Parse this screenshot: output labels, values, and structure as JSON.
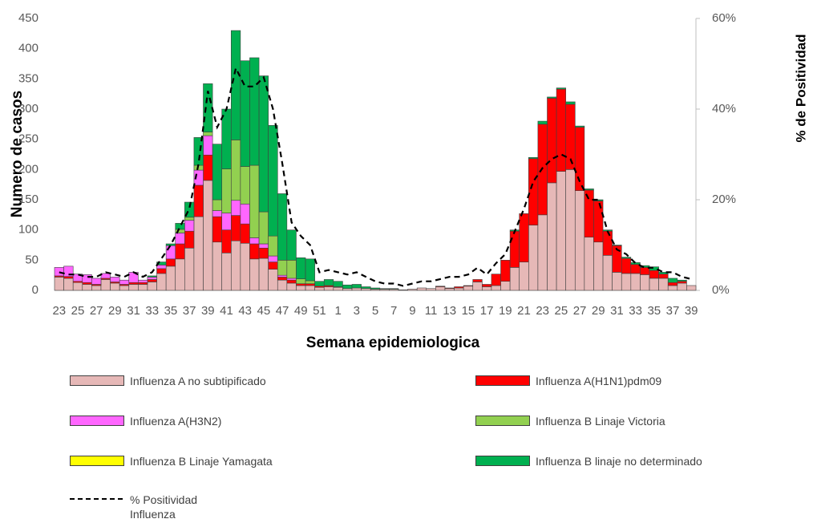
{
  "chart_data": {
    "type": "bar",
    "x_label": "Semana epidemiologica",
    "y_label": "Numero de casos",
    "y2_label": "% de Positividad",
    "categories": [
      "23",
      null,
      "25",
      null,
      "27",
      null,
      "29",
      null,
      "31",
      null,
      "33",
      null,
      "35",
      null,
      "37",
      null,
      "39",
      null,
      "41",
      null,
      "43",
      null,
      "45",
      null,
      "47",
      null,
      "49",
      null,
      "51",
      null,
      "1",
      null,
      "3",
      null,
      "5",
      null,
      "7",
      null,
      "9",
      null,
      "11",
      null,
      "13",
      null,
      "15",
      null,
      "17",
      null,
      "19",
      null,
      "21",
      null,
      "23",
      null,
      "25",
      null,
      "27",
      null,
      "29",
      null,
      "31",
      null,
      "33",
      null,
      "35",
      null,
      "37",
      null,
      "39"
    ],
    "ylim": [
      0,
      450
    ],
    "yticks": [
      0,
      50,
      100,
      150,
      200,
      250,
      300,
      350,
      400,
      450
    ],
    "y2lim": [
      0,
      60
    ],
    "y2ticks": [
      {
        "value": 0,
        "label": "0%"
      },
      {
        "value": 20,
        "label": "20%"
      },
      {
        "value": 40,
        "label": "40%"
      },
      {
        "value": 60,
        "label": "60%"
      }
    ],
    "grid": false,
    "series": [
      {
        "name": "Influenza A no subtipificado",
        "color": "#e6b8b7",
        "values": [
          22,
          20,
          13,
          10,
          8,
          18,
          12,
          8,
          10,
          10,
          14,
          28,
          40,
          52,
          70,
          122,
          182,
          80,
          62,
          82,
          78,
          52,
          53,
          35,
          17,
          12,
          8,
          8,
          5,
          6,
          5,
          3,
          4,
          3,
          2,
          2,
          2,
          1,
          2,
          4,
          3,
          6,
          3,
          4,
          7,
          14,
          6,
          8,
          15,
          38,
          47,
          108,
          125,
          178,
          197,
          200,
          165,
          88,
          80,
          58,
          30,
          28,
          28,
          26,
          20,
          20,
          8,
          12,
          8
        ]
      },
      {
        "name": "Influenza A(H1N1)pdm09",
        "color": "#ff0000",
        "values": [
          2,
          3,
          2,
          3,
          2,
          2,
          2,
          2,
          3,
          3,
          4,
          8,
          12,
          25,
          28,
          52,
          42,
          42,
          38,
          42,
          32,
          25,
          17,
          12,
          5,
          5,
          3,
          3,
          2,
          2,
          1,
          0,
          0,
          0,
          0,
          0,
          0,
          0,
          0,
          0,
          0,
          1,
          1,
          2,
          1,
          4,
          4,
          19,
          35,
          60,
          80,
          110,
          150,
          140,
          136,
          108,
          105,
          78,
          68,
          40,
          44,
          25,
          15,
          12,
          13,
          7,
          5,
          3,
          0
        ]
      },
      {
        "name": "Influenza A(H3N2)",
        "color": "#ff66ff",
        "values": [
          14,
          17,
          12,
          13,
          10,
          8,
          8,
          7,
          17,
          4,
          4,
          6,
          22,
          18,
          18,
          25,
          32,
          10,
          28,
          25,
          33,
          10,
          7,
          10,
          3,
          3,
          0,
          0,
          0,
          0,
          0,
          0,
          0,
          0,
          0,
          0,
          0,
          0,
          0,
          0,
          0,
          0,
          0,
          0,
          0,
          0,
          0,
          0,
          0,
          0,
          0,
          0,
          0,
          0,
          0,
          0,
          0,
          0,
          0,
          0,
          0,
          0,
          0,
          0,
          0,
          0,
          0,
          0,
          0
        ]
      },
      {
        "name": "Influenza B Linaje Victoria",
        "color": "#92d050",
        "values": [
          0,
          0,
          0,
          0,
          0,
          0,
          0,
          0,
          0,
          0,
          0,
          0,
          0,
          6,
          5,
          8,
          6,
          18,
          73,
          100,
          62,
          120,
          53,
          33,
          25,
          30,
          8,
          5,
          0,
          0,
          0,
          0,
          0,
          0,
          0,
          0,
          0,
          0,
          0,
          0,
          0,
          0,
          0,
          0,
          0,
          0,
          0,
          0,
          0,
          0,
          0,
          0,
          0,
          0,
          0,
          0,
          0,
          0,
          0,
          0,
          0,
          0,
          0,
          0,
          0,
          0,
          0,
          0,
          0
        ]
      },
      {
        "name": "Influenza B Linaje Yamagata",
        "color": "#ffff00",
        "values": [
          0,
          0,
          0,
          0,
          0,
          0,
          0,
          0,
          0,
          0,
          0,
          0,
          0,
          0,
          0,
          0,
          0,
          0,
          0,
          0,
          0,
          0,
          0,
          0,
          0,
          0,
          0,
          0,
          0,
          0,
          0,
          0,
          0,
          0,
          0,
          0,
          0,
          0,
          0,
          0,
          0,
          0,
          0,
          0,
          0,
          0,
          0,
          0,
          0,
          0,
          0,
          0,
          0,
          0,
          0,
          0,
          0,
          0,
          0,
          0,
          0,
          0,
          0,
          0,
          0,
          0,
          0,
          0,
          0
        ]
      },
      {
        "name": "Influenza B linaje no determinado",
        "color": "#00b050",
        "values": [
          0,
          0,
          0,
          0,
          0,
          0,
          0,
          0,
          0,
          0,
          2,
          5,
          3,
          10,
          25,
          46,
          80,
          92,
          99,
          181,
          175,
          178,
          225,
          183,
          110,
          50,
          35,
          36,
          8,
          10,
          9,
          6,
          6,
          3,
          2,
          1,
          1,
          0,
          0,
          0,
          0,
          0,
          0,
          0,
          0,
          0,
          0,
          0,
          0,
          2,
          0,
          2,
          5,
          2,
          2,
          4,
          2,
          2,
          2,
          2,
          1,
          2,
          3,
          3,
          6,
          3,
          7,
          2,
          0
        ]
      },
      {
        "name": "% Positividad Influenza",
        "type": "line",
        "axis": "y2",
        "color": "#000000",
        "dashed": true,
        "values": [
          4,
          3.5,
          3.5,
          3,
          3,
          4,
          3.5,
          3,
          4,
          3,
          4,
          7,
          10,
          14,
          18,
          28,
          44,
          36,
          40,
          49,
          45,
          45,
          47,
          40,
          28,
          15,
          12,
          10,
          4,
          4.5,
          4,
          3.5,
          4,
          3,
          2,
          1.5,
          1.5,
          1,
          1.5,
          2,
          2,
          2.5,
          3,
          3,
          3.5,
          5,
          3.5,
          6,
          8,
          13,
          18,
          24,
          27,
          29,
          30,
          29,
          24,
          20,
          20,
          13,
          9,
          8,
          6,
          5,
          5,
          4,
          4,
          3,
          2.5
        ]
      }
    ]
  }
}
